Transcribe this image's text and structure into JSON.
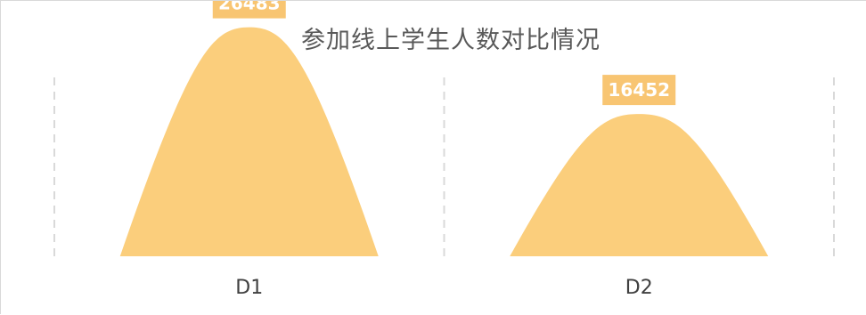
{
  "chart_data": {
    "type": "area",
    "title": "参加线上学生人数对比情况",
    "categories": [
      "D1",
      "D2"
    ],
    "values": [
      26483,
      16452
    ],
    "ylim": [
      0,
      28500
    ],
    "xlabel": "",
    "ylabel": "",
    "grid": "vertical-dashed",
    "legend": "none",
    "series_color": "#FBCE7C",
    "label_color": "#F8C572",
    "label_text_color": "#ffffff",
    "gridline_color": "#d9d9d9",
    "axis_text_color": "#404040"
  }
}
